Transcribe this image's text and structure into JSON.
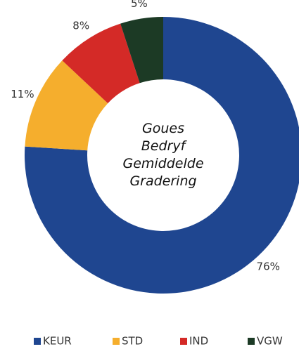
{
  "chart_data": {
    "type": "donut",
    "center_label": [
      "Goues",
      "Bedryf",
      "Gemiddelde",
      "Gradering"
    ],
    "categories": [
      "KEUR",
      "STD",
      "IND",
      "VGW"
    ],
    "values": [
      76,
      11,
      8,
      5
    ],
    "value_labels": [
      "76%",
      "11%",
      "8%",
      "5%"
    ],
    "colors": [
      "#1f4690",
      "#f5ae2d",
      "#d42a27",
      "#1c3a25"
    ],
    "legend": "bottom"
  }
}
